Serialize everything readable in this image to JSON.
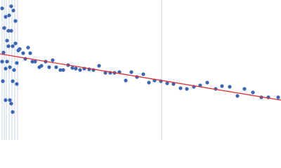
{
  "chart_data": {
    "type": "scatter",
    "xlim": [
      0,
      400
    ],
    "ylim": [
      0,
      200
    ],
    "x": [
      3,
      8,
      13,
      16,
      19,
      22,
      6,
      12,
      16,
      10,
      12,
      18,
      22,
      5,
      3,
      10,
      8,
      14,
      20,
      24,
      4,
      18,
      24,
      8,
      14,
      16,
      18,
      26,
      28,
      33,
      40,
      36,
      43,
      46,
      50,
      56,
      59,
      65,
      70,
      75,
      80,
      86,
      90,
      97,
      103,
      108,
      114,
      120,
      127,
      133,
      141,
      150,
      157,
      163,
      170,
      179,
      187,
      195,
      204,
      212,
      220,
      229,
      238,
      247,
      257,
      266,
      276,
      285,
      295,
      307,
      316,
      327,
      338,
      348,
      360,
      372,
      382,
      396
    ],
    "series": [
      {
        "color": "#3a66b4",
        "values": [
          188,
          176,
          178,
          191,
          185,
          170,
          160,
          156,
          156,
          142,
          134,
          134,
          138,
          125,
          112,
          112,
          102,
          104,
          100,
          110,
          84,
          84,
          80,
          57,
          57,
          52,
          40,
          128,
          130,
          124,
          132,
          116,
          124,
          112,
          112,
          104,
          106,
          112,
          104,
          114,
          104,
          100,
          100,
          107,
          103,
          102,
          100,
          102,
          101,
          100,
          106,
          96,
          96,
          96,
          97,
          85,
          97,
          90,
          94,
          82,
          85,
          84,
          81,
          80,
          74,
          73,
          76,
          78,
          82,
          73,
          77,
          76,
          63,
          73,
          68,
          61,
          61,
          61
        ]
      }
    ],
    "fit": {
      "x": [
        0,
        400
      ],
      "y": [
        123,
        57
      ],
      "color": "#e03030"
    }
  }
}
